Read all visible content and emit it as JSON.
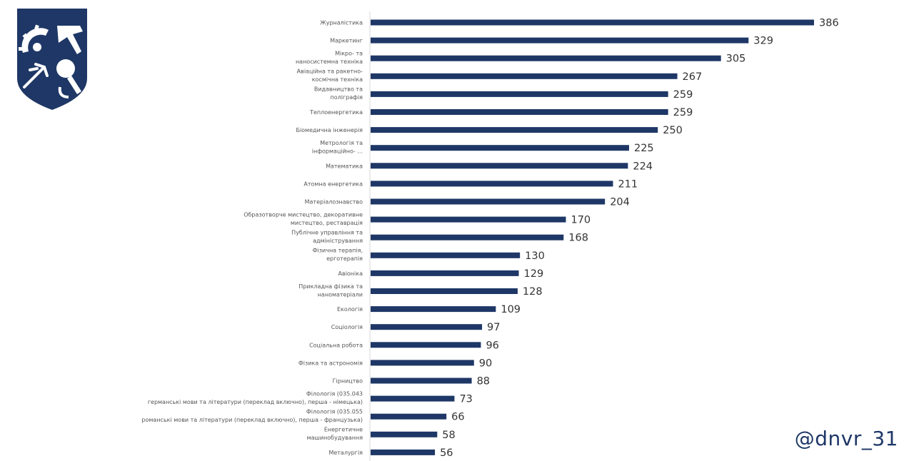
{
  "colors": {
    "bar": "#1e3766",
    "axis": "#d9d9d9",
    "label": "#555555",
    "value": "#333333",
    "logo": "#1e3766"
  },
  "logo": {
    "name": "kpi-emblem"
  },
  "watermark": {
    "handle": "@dnvr_31"
  },
  "chart_data": {
    "type": "bar",
    "orientation": "horizontal",
    "title": "",
    "xlabel": "",
    "ylabel": "",
    "xlim": [
      0,
      400
    ],
    "grid": false,
    "legend": "none",
    "categories": [
      [
        "Журналістика"
      ],
      [
        "Маркетинг"
      ],
      [
        "Мікро- та",
        "наносистемна техніка"
      ],
      [
        "Авіаційна та ракетно-",
        "космічна техніка"
      ],
      [
        "Видавництво та",
        "поліграфія"
      ],
      [
        "Теплоенергетика"
      ],
      [
        "Біомедична інженерія"
      ],
      [
        "Метрологія та",
        "інформаційно- ..."
      ],
      [
        "Математика"
      ],
      [
        "Атомна енергетика"
      ],
      [
        "Матеріалознавство"
      ],
      [
        "Образотворче мистецтво, декоративне",
        "мистецтво, реставрація"
      ],
      [
        "Публічне управління та",
        "адміністрування"
      ],
      [
        "Фізична терапія,",
        "ерготерапія"
      ],
      [
        "Авіоніка"
      ],
      [
        "Прикладна фізика та",
        "наноматеріали"
      ],
      [
        "Екологія"
      ],
      [
        "Соціологія"
      ],
      [
        "Соціальна робота"
      ],
      [
        "Фізика та астрономія"
      ],
      [
        "Гірництво"
      ],
      [
        "Філологія (035.043",
        "германські мови та літератури (переклад включно), перша - німецька)"
      ],
      [
        "Філологія (035.055",
        "романські мови та літератури (переклад включно), перша - французька)"
      ],
      [
        "Енергетичне",
        "машинобудування"
      ],
      [
        "Металургія"
      ]
    ],
    "values": [
      386,
      329,
      305,
      267,
      259,
      259,
      250,
      225,
      224,
      211,
      204,
      170,
      168,
      130,
      129,
      128,
      109,
      97,
      96,
      90,
      88,
      73,
      66,
      58,
      56
    ]
  }
}
